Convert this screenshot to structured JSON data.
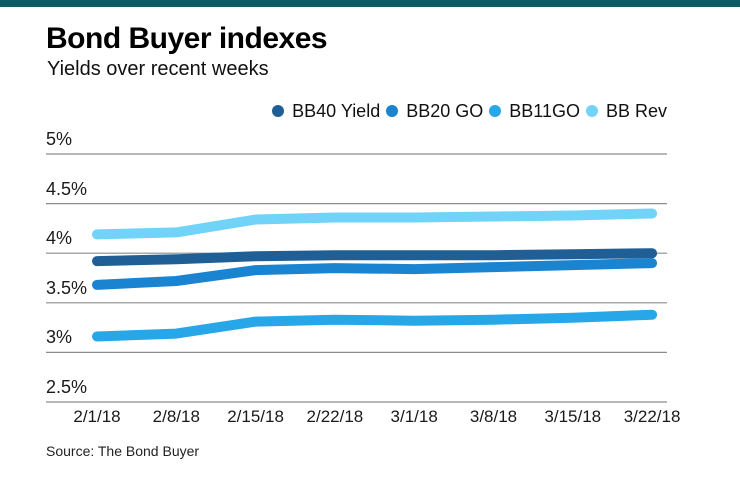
{
  "accent_bar": {
    "color": "#0e5b66"
  },
  "header": {
    "title": "Bond Buyer indexes",
    "subtitle": "Yields over recent weeks"
  },
  "source": "Source: The Bond Buyer",
  "colors": {
    "gridline": "#8c8c8c",
    "axis_text": "#1a1a1a"
  },
  "chart_data": {
    "type": "line",
    "title": "Bond Buyer indexes",
    "subtitle": "Yields over recent weeks",
    "xlabel": "",
    "ylabel": "",
    "unit": "%",
    "grid": true,
    "legend_position": "top-right",
    "ylim": [
      2.5,
      5
    ],
    "yticks": [
      {
        "value": 5,
        "label": "5%"
      },
      {
        "value": 4.5,
        "label": "4.5%"
      },
      {
        "value": 4,
        "label": "4%"
      },
      {
        "value": 3.5,
        "label": "3.5%"
      },
      {
        "value": 3,
        "label": "3%"
      },
      {
        "value": 2.5,
        "label": "2.5%"
      }
    ],
    "categories": [
      "2/1/18",
      "2/8/18",
      "2/15/18",
      "2/22/18",
      "3/1/18",
      "3/8/18",
      "3/15/18",
      "3/22/18"
    ],
    "series": [
      {
        "name": "BB40 Yield",
        "color": "#1f5f96",
        "values": [
          3.92,
          3.94,
          3.97,
          3.98,
          3.98,
          3.98,
          3.99,
          4.0
        ]
      },
      {
        "name": "BB20 GO",
        "color": "#1b84d1",
        "values": [
          3.68,
          3.72,
          3.83,
          3.85,
          3.84,
          3.86,
          3.88,
          3.9
        ]
      },
      {
        "name": "BB11GO",
        "color": "#27a7e7",
        "values": [
          3.16,
          3.19,
          3.31,
          3.33,
          3.32,
          3.33,
          3.35,
          3.38
        ]
      },
      {
        "name": "BB Rev",
        "color": "#72d3f9",
        "values": [
          4.19,
          4.21,
          4.34,
          4.36,
          4.36,
          4.37,
          4.38,
          4.4
        ]
      }
    ]
  }
}
